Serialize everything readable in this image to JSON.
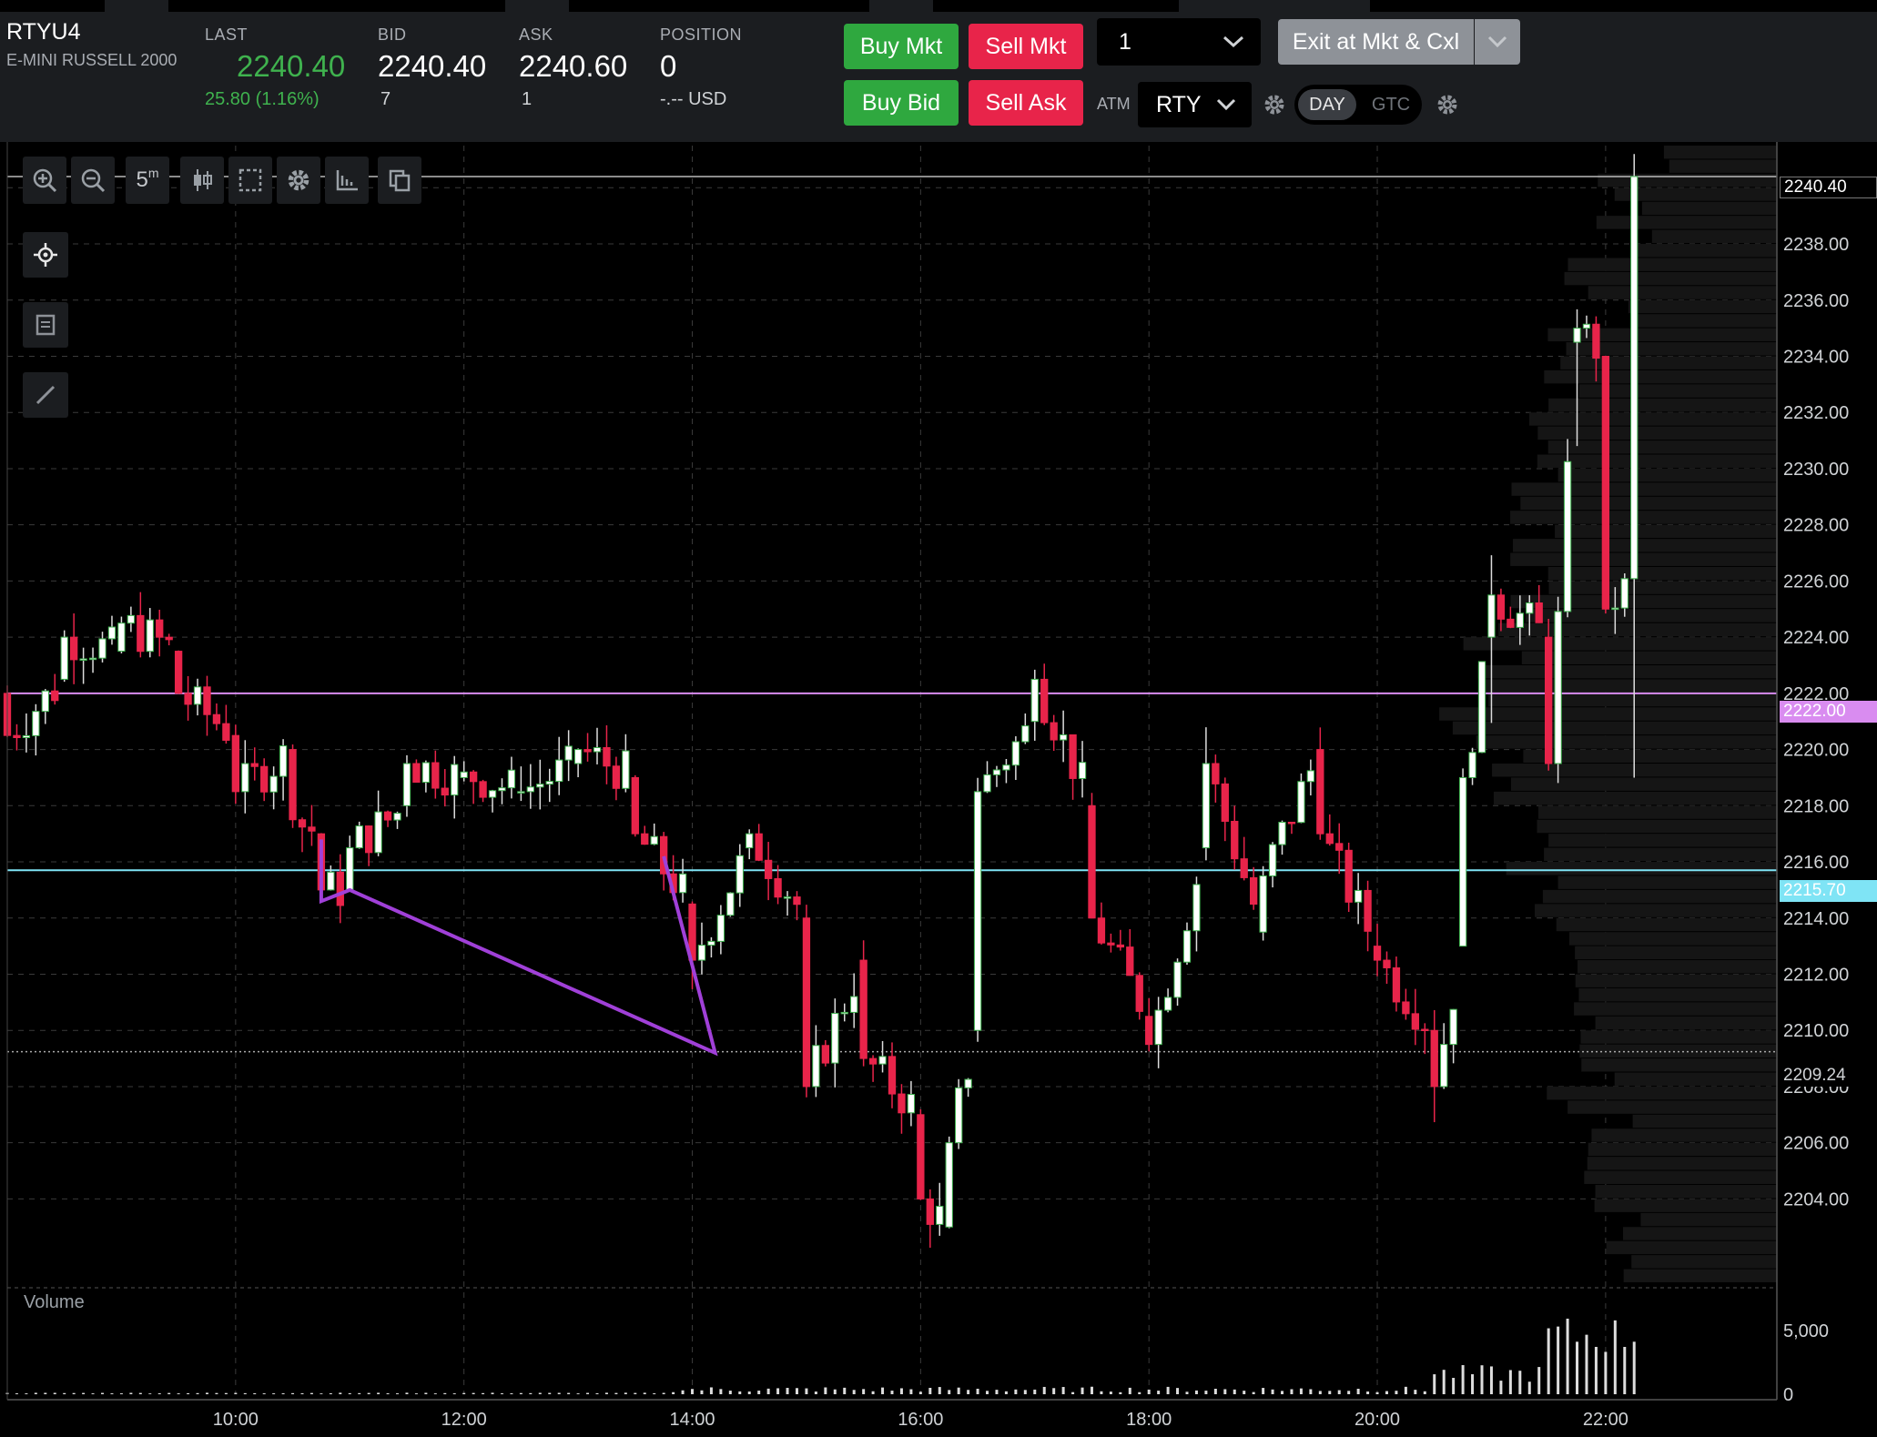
{
  "header": {
    "symbol": "RTYU4",
    "symbol_name": "E-MINI RUSSELL 2000",
    "last_label": "LAST",
    "last_value": "2240.40",
    "last_change": "25.80 (1.16%)",
    "bid_label": "BID",
    "bid_value": "2240.40",
    "bid_size": "7",
    "ask_label": "ASK",
    "ask_value": "2240.60",
    "ask_size": "1",
    "position_label": "POSITION",
    "position_value": "0",
    "position_pnl": "-.-- USD"
  },
  "order": {
    "buy_mkt": "Buy Mkt",
    "sell_mkt": "Sell Mkt",
    "buy_bid": "Buy Bid",
    "sell_ask": "Sell Ask",
    "quantity": "1",
    "exit_label": "Exit at Mkt & Cxl",
    "atm_label": "ATM",
    "atm_value": "RTY",
    "day_label": "DAY",
    "gtc_label": "GTC"
  },
  "toolbar": {
    "timeframe": "5",
    "timeframe_unit": "m"
  },
  "colors": {
    "up": "#ffffff",
    "up_border": "#3fb24e",
    "down": "#e8244a",
    "purple_line": "#d98cf0",
    "cyan_line": "#7fe4f5",
    "drawing": "#a040d8"
  },
  "chart_data": {
    "type": "candlestick",
    "price_axis_ticks": [
      "2204.00",
      "2206.00",
      "2208.00",
      "2210.00",
      "2212.00",
      "2214.00",
      "2216.00",
      "2218.00",
      "2220.00",
      "2222.00",
      "2224.00",
      "2226.00",
      "2228.00",
      "2230.00",
      "2232.00",
      "2234.00",
      "2236.00",
      "2238.00",
      "2240.00"
    ],
    "time_axis_ticks": [
      "10:00",
      "12:00",
      "14:00",
      "16:00",
      "18:00",
      "20:00",
      "22:00"
    ],
    "price_range": [
      2201.0,
      2241.5
    ],
    "time_range_hours": [
      8.0,
      23.5
    ],
    "volume_label": "Volume",
    "volume_ticks": [
      "0",
      "5,000"
    ],
    "markers": {
      "last": "2240.40",
      "purple_level": "2222.00",
      "cyan_level": "2215.70",
      "dotted_level": "2209.24"
    },
    "candles_5m_hourly_closes": [
      {
        "t": 8.0,
        "o": 2222.0,
        "h": 2222.5,
        "l": 2220.0,
        "c": 2220.5
      },
      {
        "t": 8.5,
        "o": 2222.5,
        "h": 2224.5,
        "l": 2222.0,
        "c": 2224.0
      },
      {
        "t": 9.0,
        "o": 2223.5,
        "h": 2225.2,
        "l": 2223.0,
        "c": 2224.5
      },
      {
        "t": 9.5,
        "o": 2223.5,
        "h": 2223.8,
        "l": 2221.5,
        "c": 2222.0
      },
      {
        "t": 10.0,
        "o": 2220.5,
        "h": 2221.0,
        "l": 2218.0,
        "c": 2218.5
      },
      {
        "t": 10.5,
        "o": 2220.0,
        "h": 2220.5,
        "l": 2217.0,
        "c": 2217.5
      },
      {
        "t": 10.75,
        "o": 2217.0,
        "h": 2217.2,
        "l": 2214.5,
        "c": 2215.0
      },
      {
        "t": 11.0,
        "o": 2215.0,
        "h": 2217.0,
        "l": 2214.8,
        "c": 2216.5
      },
      {
        "t": 11.5,
        "o": 2218.0,
        "h": 2220.5,
        "l": 2217.5,
        "c": 2219.5
      },
      {
        "t": 12.0,
        "o": 2219.0,
        "h": 2219.8,
        "l": 2218.5,
        "c": 2219.2
      },
      {
        "t": 12.5,
        "o": 2218.5,
        "h": 2219.5,
        "l": 2218.0,
        "c": 2218.5
      },
      {
        "t": 13.0,
        "o": 2219.5,
        "h": 2220.5,
        "l": 2219.0,
        "c": 2220.0
      },
      {
        "t": 13.5,
        "o": 2219.0,
        "h": 2219.5,
        "l": 2216.5,
        "c": 2217.0
      },
      {
        "t": 14.0,
        "o": 2214.5,
        "h": 2215.0,
        "l": 2209.5,
        "c": 2212.5
      },
      {
        "t": 14.5,
        "o": 2216.5,
        "h": 2218.5,
        "l": 2215.5,
        "c": 2217.0
      },
      {
        "t": 15.0,
        "o": 2214.0,
        "h": 2214.5,
        "l": 2207.0,
        "c": 2208.0
      },
      {
        "t": 15.5,
        "o": 2212.5,
        "h": 2213.5,
        "l": 2208.0,
        "c": 2209.0
      },
      {
        "t": 16.0,
        "o": 2207.0,
        "h": 2207.5,
        "l": 2203.5,
        "c": 2204.0
      },
      {
        "t": 16.25,
        "o": 2203.0,
        "h": 2206.5,
        "l": 2202.5,
        "c": 2206.0
      },
      {
        "t": 16.5,
        "o": 2210.0,
        "h": 2219.0,
        "l": 2209.5,
        "c": 2218.5
      },
      {
        "t": 17.0,
        "o": 2221.0,
        "h": 2223.2,
        "l": 2219.5,
        "c": 2222.5
      },
      {
        "t": 17.5,
        "o": 2218.0,
        "h": 2218.5,
        "l": 2213.5,
        "c": 2214.0
      },
      {
        "t": 18.0,
        "o": 2210.5,
        "h": 2213.0,
        "l": 2209.0,
        "c": 2209.5
      },
      {
        "t": 18.5,
        "o": 2216.5,
        "h": 2222.0,
        "l": 2216.0,
        "c": 2219.5
      },
      {
        "t": 19.0,
        "o": 2213.5,
        "h": 2216.0,
        "l": 2212.0,
        "c": 2215.5
      },
      {
        "t": 19.5,
        "o": 2220.0,
        "h": 2221.0,
        "l": 2216.5,
        "c": 2217.0
      },
      {
        "t": 20.0,
        "o": 2213.0,
        "h": 2214.0,
        "l": 2211.5,
        "c": 2212.5
      },
      {
        "t": 20.5,
        "o": 2210.0,
        "h": 2211.0,
        "l": 2206.0,
        "c": 2208.0
      },
      {
        "t": 20.75,
        "o": 2213.0,
        "h": 2219.5,
        "l": 2212.5,
        "c": 2219.0
      },
      {
        "t": 21.0,
        "o": 2224.0,
        "h": 2228.0,
        "l": 2219.0,
        "c": 2225.5
      },
      {
        "t": 21.5,
        "o": 2224.0,
        "h": 2226.0,
        "l": 2219.0,
        "c": 2219.5
      },
      {
        "t": 21.75,
        "o": 2234.5,
        "h": 2236.0,
        "l": 2222.0,
        "c": 2235.0
      },
      {
        "t": 22.0,
        "o": 2234.0,
        "h": 2239.5,
        "l": 2224.5,
        "c": 2225.0
      },
      {
        "t": 22.25,
        "o": 2226.0,
        "h": 2241.2,
        "l": 2219.0,
        "c": 2240.4
      }
    ]
  }
}
